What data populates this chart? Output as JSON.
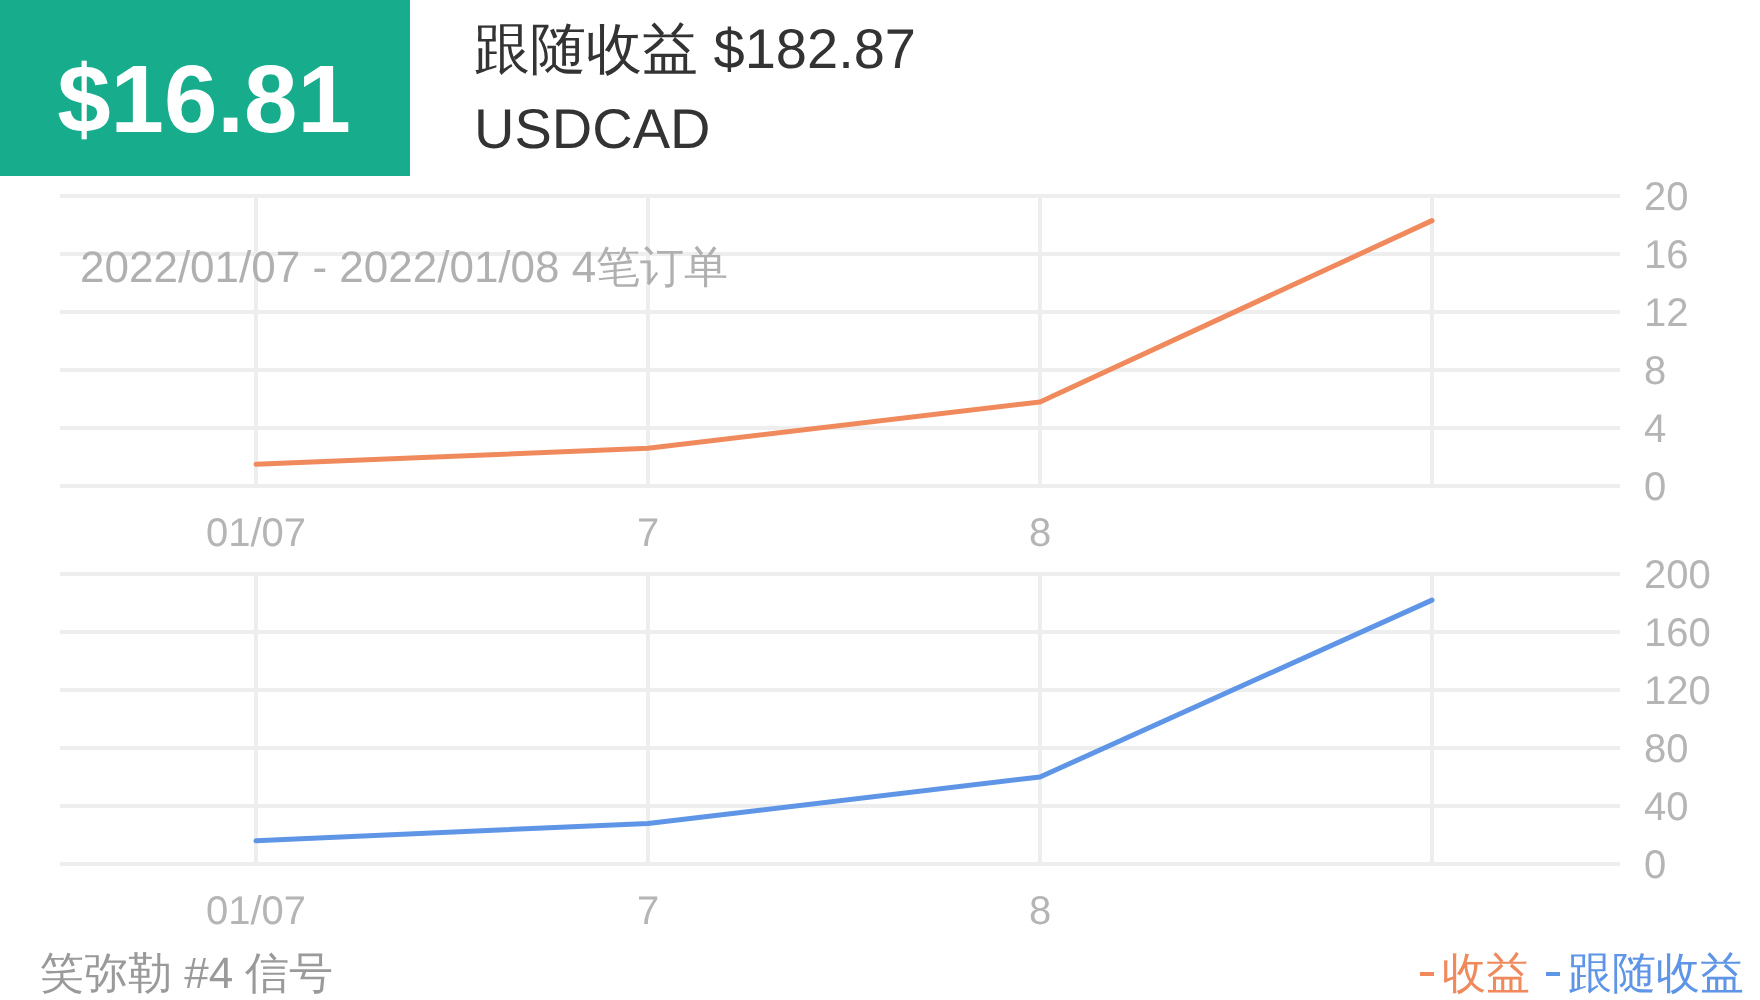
{
  "chart_data": [
    {
      "type": "other",
      "annotations": [
        "$16.81",
        "跟随收益 $182.87",
        "USDCAD"
      ]
    },
    {
      "type": "line",
      "subtitle": "2022/01/07 - 2022/01/08 4笔订单",
      "categories": [
        "01/07",
        "7",
        "8",
        null
      ],
      "series": [
        {
          "name": "收益",
          "color": "#f08a5d",
          "values": [
            1.5,
            2.6,
            5.8,
            18.3
          ]
        }
      ],
      "ylim": [
        0,
        20
      ],
      "yticks": [
        0,
        4,
        8,
        12,
        16,
        20
      ],
      "grid": true
    },
    {
      "type": "line",
      "categories": [
        "01/07",
        "7",
        "8",
        null
      ],
      "series": [
        {
          "name": "跟随收益",
          "color": "#5e95e6",
          "values": [
            16,
            28,
            60,
            182
          ]
        }
      ],
      "ylim": [
        0,
        200
      ],
      "yticks": [
        0,
        40,
        80,
        120,
        160,
        200
      ],
      "grid": true,
      "legend": "bottom right",
      "annotations": [
        "笑弥勒 #4 信号"
      ]
    }
  ]
}
